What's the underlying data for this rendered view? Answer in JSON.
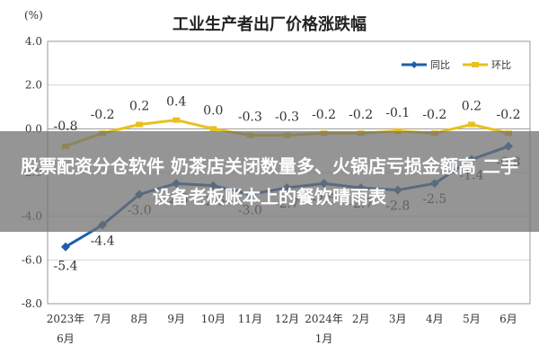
{
  "chart_data": {
    "type": "line",
    "title": "工业生产者出厂价格涨跌幅",
    "y_unit": "(%)",
    "ylim": [
      -8.0,
      4.0
    ],
    "yticks": [
      "4.0",
      "2.0",
      "0.0",
      "-2.0",
      "-4.0",
      "-6.0",
      "-8.0"
    ],
    "ytick_values": [
      4,
      2,
      0,
      -2,
      -4,
      -6,
      -8
    ],
    "categories": [
      {
        "line1": "2023年",
        "line2": "6月"
      },
      {
        "line1": "7月",
        "line2": ""
      },
      {
        "line1": "8月",
        "line2": ""
      },
      {
        "line1": "9月",
        "line2": ""
      },
      {
        "line1": "10月",
        "line2": ""
      },
      {
        "line1": "11月",
        "line2": ""
      },
      {
        "line1": "12月",
        "line2": ""
      },
      {
        "line1": "2024年",
        "line2": "1月"
      },
      {
        "line1": "2月",
        "line2": ""
      },
      {
        "line1": "3月",
        "line2": ""
      },
      {
        "line1": "4月",
        "line2": ""
      },
      {
        "line1": "5月",
        "line2": ""
      },
      {
        "line1": "6月",
        "line2": ""
      }
    ],
    "series": [
      {
        "name": "同比",
        "color": "#1f5fa8",
        "values": [
          -5.4,
          -4.4,
          -3.0,
          -2.5,
          -2.6,
          -3.0,
          -2.7,
          -2.5,
          -2.7,
          -2.8,
          -2.5,
          -1.4,
          -0.8
        ],
        "labels": [
          "-5.4",
          "-4.4",
          "-3.0",
          "-2.5",
          "-2.6",
          "-3.0",
          "-2.7",
          "-2.5",
          "-2.7",
          "-2.8",
          "-2.5",
          "-1.4",
          "-0.8"
        ]
      },
      {
        "name": "环比",
        "color": "#e8c020",
        "values": [
          -0.8,
          -0.2,
          0.2,
          0.4,
          0.0,
          -0.3,
          -0.3,
          -0.2,
          -0.2,
          -0.1,
          -0.2,
          0.2,
          -0.2
        ],
        "labels": [
          "-0.8",
          "-0.2",
          "0.2",
          "0.4",
          "0.0",
          "-0.3",
          "-0.3",
          "-0.2",
          "-0.2",
          "-0.1",
          "-0.2",
          "0.2",
          "-0.2"
        ]
      }
    ],
    "grid": "horizontal",
    "legend_position": "top-right"
  },
  "overlay": {
    "text": "股票配资分仓软件 奶茶店关闭数量多、火锅店亏损金额高 二手设备老板账本上的餐饮晴雨表"
  }
}
